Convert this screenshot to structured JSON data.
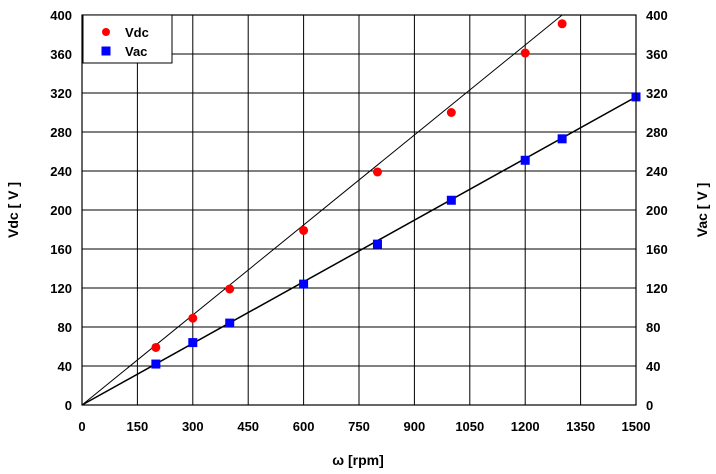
{
  "chart_data": {
    "type": "scatter",
    "xlabel": "ω [rpm]",
    "ylabel_left": "Vdc [ V ]",
    "ylabel_right": "Vac [ V ]",
    "xlim": [
      0,
      1500
    ],
    "ylim": [
      0,
      400
    ],
    "xticks": [
      "0",
      "150",
      "300",
      "450",
      "600",
      "750",
      "900",
      "1050",
      "1200",
      "1350",
      "1500"
    ],
    "yticks": [
      "0",
      "40",
      "80",
      "120",
      "160",
      "200",
      "240",
      "280",
      "320",
      "360",
      "400"
    ],
    "grid": true,
    "legend_position": "top-left",
    "series": [
      {
        "name": "Vdc",
        "color": "#ff0000",
        "marker": "circle",
        "x": [
          200,
          300,
          400,
          600,
          800,
          1000,
          1200,
          1300
        ],
        "y": [
          59,
          89,
          119,
          179,
          239,
          300,
          361,
          391
        ],
        "trendline": {
          "x": [
            0,
            1300
          ],
          "y": [
            0,
            400
          ]
        }
      },
      {
        "name": "Vac",
        "color": "#0000ff",
        "marker": "square",
        "x": [
          200,
          300,
          400,
          600,
          800,
          1000,
          1200,
          1300,
          1500
        ],
        "y": [
          42,
          64,
          84,
          124,
          165,
          210,
          251,
          273,
          316
        ],
        "trendline": {
          "x": [
            0,
            1500
          ],
          "y": [
            0,
            316
          ]
        }
      }
    ]
  }
}
